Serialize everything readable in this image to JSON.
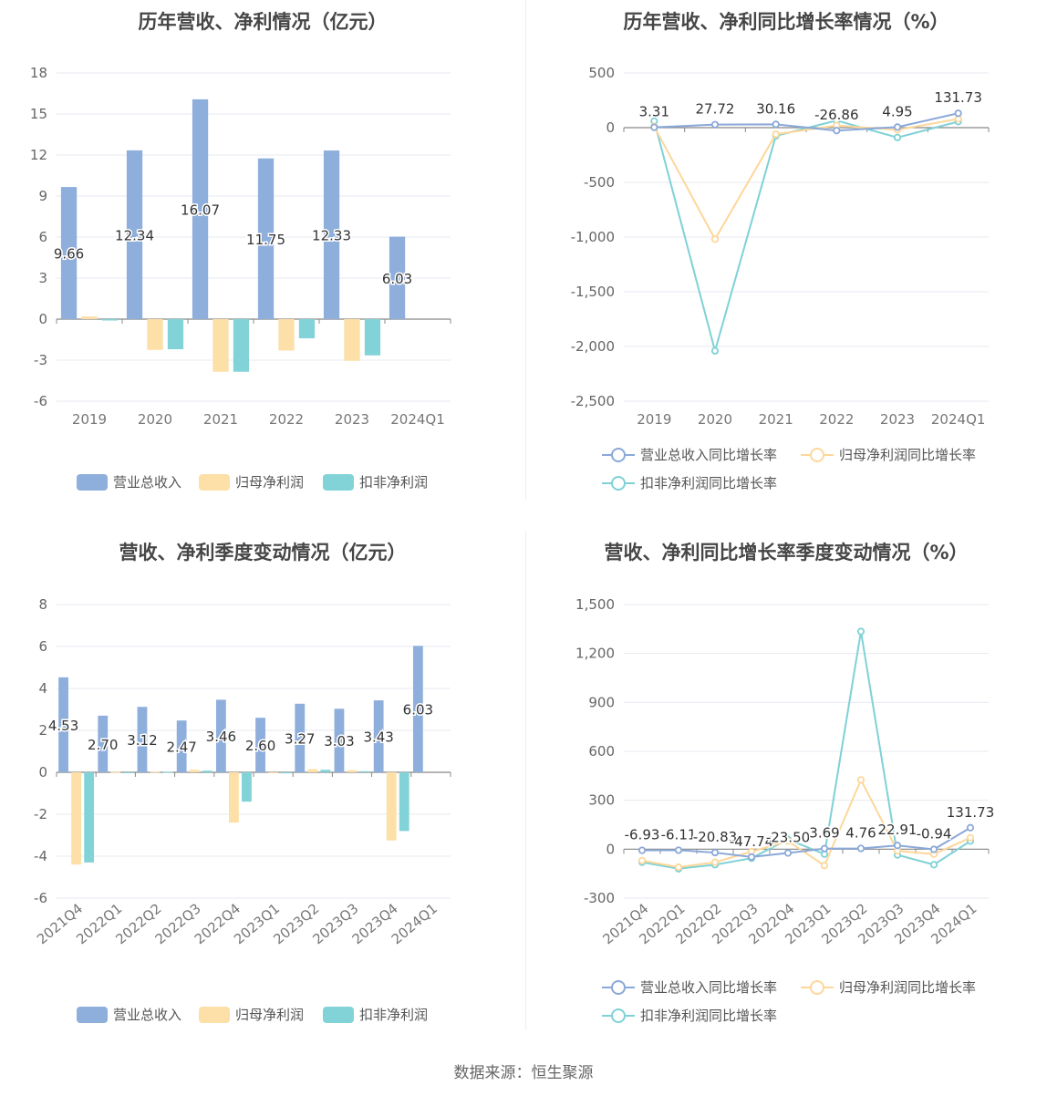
{
  "colors": {
    "revenue": "#8eaedc",
    "net_profit": "#fddfa8",
    "deducted": "#82d3d7"
  },
  "source": "数据来源：恒生聚源",
  "chart_data": [
    {
      "id": "annual-amounts",
      "type": "bar",
      "title": "历年营收、净利情况（亿元）",
      "categories": [
        "2019",
        "2020",
        "2021",
        "2022",
        "2023",
        "2024Q1"
      ],
      "ylim": [
        -6,
        18
      ],
      "yticks": [
        -6,
        -3,
        0,
        3,
        6,
        9,
        12,
        15,
        18
      ],
      "grid": true,
      "legend_position": "bottom",
      "series": [
        {
          "name": "营业总收入",
          "values": [
            9.66,
            12.34,
            16.07,
            11.75,
            12.33,
            6.03
          ],
          "labels": [
            "9.66",
            "12.34",
            "16.07",
            "11.75",
            "12.33",
            "6.03"
          ]
        },
        {
          "name": "归母净利润",
          "values": [
            0.2,
            -2.25,
            -3.85,
            -2.3,
            -3.05,
            null
          ]
        },
        {
          "name": "扣非净利润",
          "values": [
            -0.1,
            -2.2,
            -3.85,
            -1.4,
            -2.65,
            null
          ]
        }
      ]
    },
    {
      "id": "annual-growth",
      "type": "line",
      "title": "历年营收、净利同比增长率情况（%）",
      "categories": [
        "2019",
        "2020",
        "2021",
        "2022",
        "2023",
        "2024Q1"
      ],
      "ylim": [
        -2500,
        500
      ],
      "yticks": [
        -2500,
        -2000,
        -1500,
        -1000,
        -500,
        0,
        500
      ],
      "ytick_labels": [
        "-2,500",
        "-2,000",
        "-1,500",
        "-1,000",
        "-500",
        "0",
        "500"
      ],
      "grid": true,
      "legend_position": "bottom",
      "series": [
        {
          "name": "营业总收入同比增长率",
          "values": [
            3.31,
            27.72,
            30.16,
            -26.86,
            4.95,
            131.73
          ],
          "labels": [
            "3.31",
            "27.72",
            "30.16",
            "-26.86",
            "4.95",
            "131.73"
          ]
        },
        {
          "name": "归母净利润同比增长率",
          "values": [
            10,
            -1020,
            -60,
            20,
            -20,
            80
          ]
        },
        {
          "name": "扣非净利润同比增长率",
          "values": [
            60,
            -2040,
            -75,
            65,
            -90,
            55
          ]
        }
      ]
    },
    {
      "id": "quarterly-amounts",
      "type": "bar",
      "title": "营收、净利季度变动情况（亿元）",
      "categories": [
        "2021Q4",
        "2022Q1",
        "2022Q2",
        "2022Q3",
        "2022Q4",
        "2023Q1",
        "2023Q2",
        "2023Q3",
        "2023Q4",
        "2024Q1"
      ],
      "ylim": [
        -6,
        8
      ],
      "yticks": [
        -6,
        -4,
        -2,
        0,
        2,
        4,
        6,
        8
      ],
      "grid": true,
      "legend_position": "bottom",
      "series": [
        {
          "name": "营业总收入",
          "values": [
            4.53,
            2.7,
            3.12,
            2.47,
            3.46,
            2.6,
            3.27,
            3.03,
            3.43,
            6.03
          ],
          "labels": [
            "4.53",
            "2.70",
            "3.12",
            "2.47",
            "3.46",
            "2.60",
            "3.27",
            "3.03",
            "3.43",
            "6.03"
          ]
        },
        {
          "name": "归母净利润",
          "values": [
            -4.4,
            0.02,
            0.03,
            0.12,
            -2.4,
            -0.03,
            0.15,
            0.1,
            -3.25,
            null
          ]
        },
        {
          "name": "扣非净利润",
          "values": [
            -4.3,
            -0.02,
            0.02,
            0.08,
            -1.4,
            -0.05,
            0.12,
            0.05,
            -2.8,
            null
          ]
        }
      ]
    },
    {
      "id": "quarterly-growth",
      "type": "line",
      "title": "营收、净利同比增长率季度变动情况（%）",
      "categories": [
        "2021Q4",
        "2022Q1",
        "2022Q2",
        "2022Q3",
        "2022Q4",
        "2023Q1",
        "2023Q2",
        "2023Q3",
        "2023Q4",
        "2024Q1"
      ],
      "ylim": [
        -300,
        1500
      ],
      "yticks": [
        -300,
        0,
        300,
        600,
        900,
        1200,
        1500
      ],
      "ytick_labels": [
        "-300",
        "0",
        "300",
        "600",
        "900",
        "1,200",
        "1,500"
      ],
      "grid": true,
      "legend_position": "bottom",
      "series": [
        {
          "name": "营业总收入同比增长率",
          "values": [
            -6.93,
            -6.11,
            -20.83,
            -47.74,
            -23.5,
            3.69,
            4.76,
            22.91,
            -0.94,
            131.73
          ],
          "labels": [
            "-6.93",
            "-6.11",
            "-20.83",
            "-47.74",
            "-23.50",
            "3.69",
            "4.76",
            "22.91",
            "-0.94",
            "131.73"
          ]
        },
        {
          "name": "归母净利润同比增长率",
          "values": [
            -70,
            -110,
            -80,
            -15,
            50,
            -100,
            425,
            -10,
            -30,
            70
          ]
        },
        {
          "name": "扣非净利润同比增长率",
          "values": [
            -80,
            -120,
            -95,
            -55,
            60,
            -30,
            1335,
            -35,
            -95,
            50
          ]
        }
      ]
    }
  ]
}
